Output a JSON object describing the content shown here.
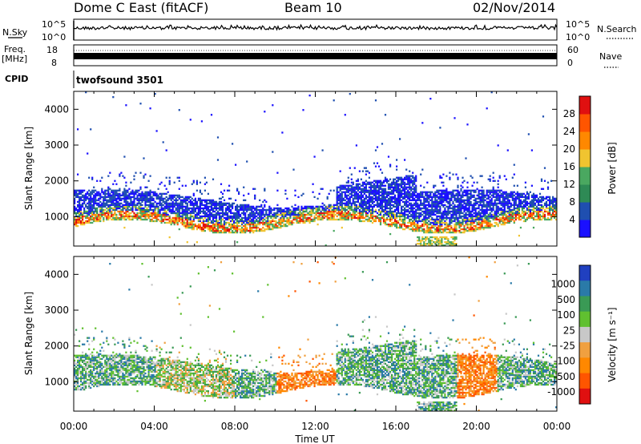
{
  "header": {
    "station": "Dome C East (fitACF)",
    "beam": "Beam 10",
    "date": "02/Nov/2014"
  },
  "side_labels": {
    "nsky": "N.Sky",
    "nsearch": "N.Search",
    "freq_line1": "Freq.",
    "freq_line2": "[MHz]",
    "nave": "Nave",
    "cpid": "CPID",
    "cpid_value": "twofsound 3501"
  },
  "noise_panel": {
    "left_ticks": [
      "10^5",
      "10^0"
    ],
    "right_ticks": [
      "10^5",
      "10^0"
    ]
  },
  "freq_panel": {
    "left_ticks": [
      "18",
      "8"
    ],
    "right_ticks": [
      "60",
      "0"
    ]
  },
  "colors": {
    "power_scale": [
      "#1a10ff",
      "#1f4fb0",
      "#2e8a55",
      "#4aa860",
      "#f0c430",
      "#ff8800",
      "#ff5500",
      "#e01010"
    ],
    "velocity_scale": [
      "#e01010",
      "#ff5500",
      "#ff8800",
      "#f0a040",
      "#c8c8c8",
      "#60c030",
      "#3a9a55",
      "#2a7aa8",
      "#2040c0"
    ]
  },
  "chart_data": [
    {
      "type": "heatmap",
      "title": "",
      "ylabel": "Slant Range [km]",
      "xlabel": "",
      "x_ticks": [
        "00:00",
        "04:00",
        "08:00",
        "12:00",
        "16:00",
        "20:00",
        "00:00"
      ],
      "y_ticks": [
        "1000",
        "2000",
        "3000",
        "4000"
      ],
      "ylim": [
        180,
        4500
      ],
      "xlim_hours": [
        0,
        24
      ],
      "colorbar_label": "Power [dB]",
      "colorbar_ticks": [
        "4",
        "8",
        "12",
        "16",
        "20",
        "24",
        "28"
      ],
      "colorbar_range": [
        0,
        32
      ]
    },
    {
      "type": "heatmap",
      "title": "",
      "ylabel": "Slant Range [km]",
      "xlabel": "Time UT",
      "x_ticks": [
        "00:00",
        "04:00",
        "08:00",
        "12:00",
        "16:00",
        "20:00",
        "00:00"
      ],
      "y_ticks": [
        "1000",
        "2000",
        "3000",
        "4000"
      ],
      "ylim": [
        180,
        4500
      ],
      "xlim_hours": [
        0,
        24
      ],
      "colorbar_label": "Velocity [m s⁻¹]",
      "colorbar_ticks": [
        "1000",
        "500",
        "100",
        "25",
        "-25",
        "-100",
        "-500",
        "-1000"
      ]
    }
  ]
}
